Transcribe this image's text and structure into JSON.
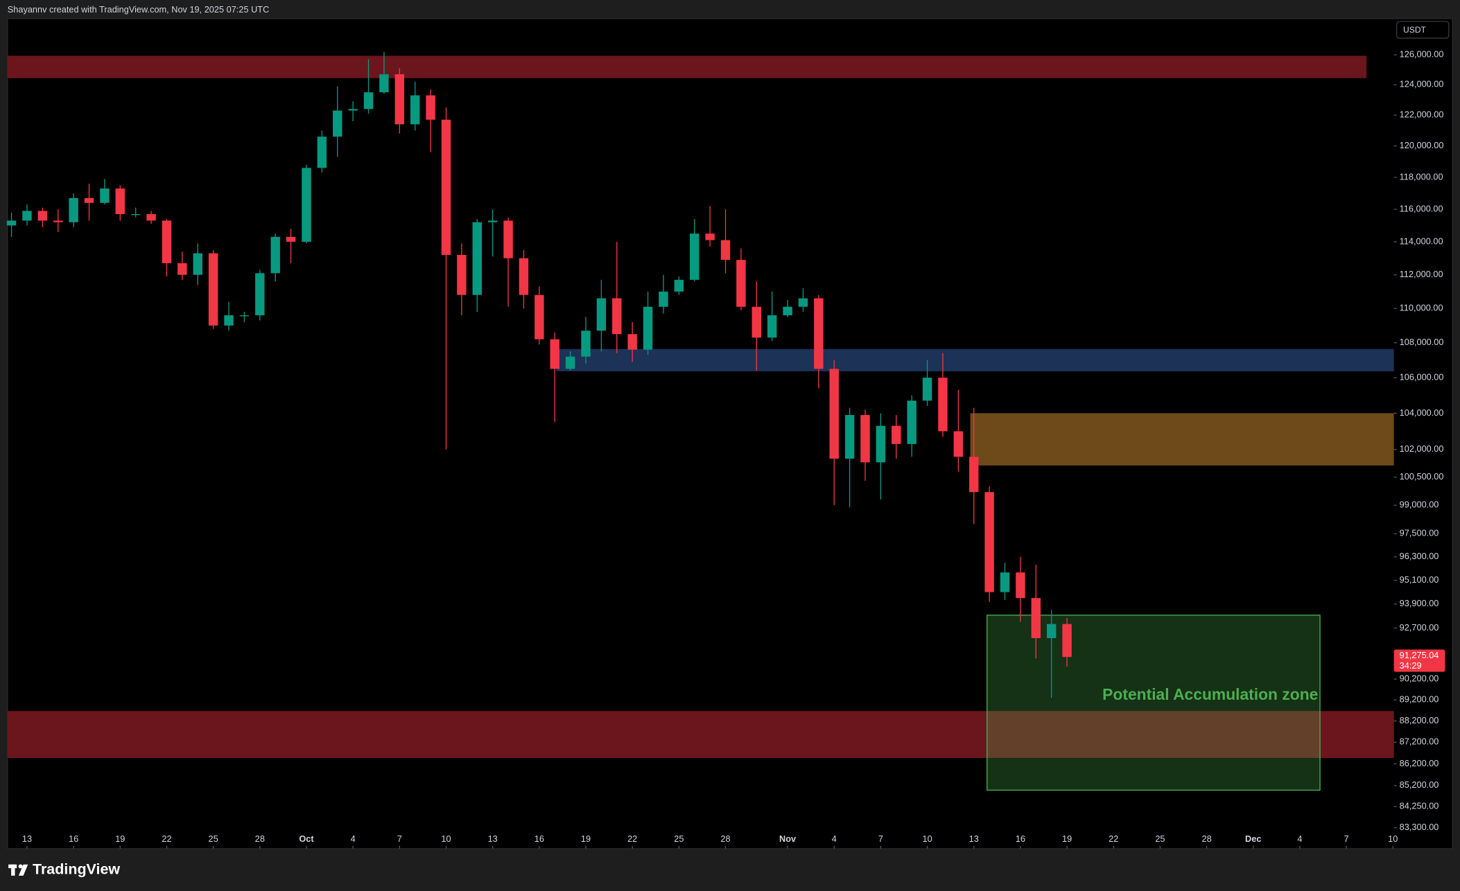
{
  "header": {
    "credit": "Shayannv created with TradingView.com, Nov 19, 2025 07:25 UTC"
  },
  "footer": {
    "brand": "TradingView"
  },
  "chart_data": {
    "type": "candlestick",
    "currency": "USDT",
    "log_scale": true,
    "up_color": "#089981",
    "down_color": "#f23645",
    "xlim": [
      11.74,
      101.06
    ],
    "xticks": [
      {
        "value": 13,
        "label": "13"
      },
      {
        "value": 16,
        "label": "16"
      },
      {
        "value": 19,
        "label": "19"
      },
      {
        "value": 22,
        "label": "22"
      },
      {
        "value": 25,
        "label": "25"
      },
      {
        "value": 28,
        "label": "28"
      },
      {
        "value": 31,
        "label": "Oct"
      },
      {
        "value": 34,
        "label": "4"
      },
      {
        "value": 37,
        "label": "7"
      },
      {
        "value": 40,
        "label": "10"
      },
      {
        "value": 43,
        "label": "13"
      },
      {
        "value": 46,
        "label": "16"
      },
      {
        "value": 49,
        "label": "19"
      },
      {
        "value": 52,
        "label": "22"
      },
      {
        "value": 55,
        "label": "25"
      },
      {
        "value": 58,
        "label": "28"
      },
      {
        "value": 62,
        "label": "Nov"
      },
      {
        "value": 65,
        "label": "4"
      },
      {
        "value": 68,
        "label": "7"
      },
      {
        "value": 71,
        "label": "10"
      },
      {
        "value": 74,
        "label": "13"
      },
      {
        "value": 77,
        "label": "16"
      },
      {
        "value": 80,
        "label": "19"
      },
      {
        "value": 83,
        "label": "22"
      },
      {
        "value": 86,
        "label": "25"
      },
      {
        "value": 89,
        "label": "28"
      },
      {
        "value": 92,
        "label": "Dec"
      },
      {
        "value": 95,
        "label": "4"
      },
      {
        "value": 98,
        "label": "7"
      },
      {
        "value": 101,
        "label": "10"
      }
    ],
    "ylim": [
      82370,
      128470
    ],
    "yticks": [
      {
        "value": 126000,
        "label": "126,000.00"
      },
      {
        "value": 124000,
        "label": "124,000.00"
      },
      {
        "value": 122000,
        "label": "122,000.00"
      },
      {
        "value": 120000,
        "label": "120,000.00"
      },
      {
        "value": 118000,
        "label": "118,000.00"
      },
      {
        "value": 116000,
        "label": "116,000.00"
      },
      {
        "value": 114000,
        "label": "114,000.00"
      },
      {
        "value": 112000,
        "label": "112,000.00"
      },
      {
        "value": 110000,
        "label": "110,000.00"
      },
      {
        "value": 108000,
        "label": "108,000.00"
      },
      {
        "value": 106000,
        "label": "106,000.00"
      },
      {
        "value": 104000,
        "label": "104,000.00"
      },
      {
        "value": 102000,
        "label": "102,000.00"
      },
      {
        "value": 100500,
        "label": "100,500.00"
      },
      {
        "value": 99000,
        "label": "99,000.00"
      },
      {
        "value": 97500,
        "label": "97,500.00"
      },
      {
        "value": 96300,
        "label": "96,300.00"
      },
      {
        "value": 95100,
        "label": "95,100.00"
      },
      {
        "value": 93900,
        "label": "93,900.00"
      },
      {
        "value": 92700,
        "label": "92,700.00"
      },
      {
        "value": 90200,
        "label": "90,200.00"
      },
      {
        "value": 89200,
        "label": "89,200.00"
      },
      {
        "value": 88200,
        "label": "88,200.00"
      },
      {
        "value": 87200,
        "label": "87,200.00"
      },
      {
        "value": 86200,
        "label": "86,200.00"
      },
      {
        "value": 85200,
        "label": "85,200.00"
      },
      {
        "value": 84250,
        "label": "84,250.00"
      },
      {
        "value": 83300,
        "label": "83,300.00"
      }
    ],
    "current_price": {
      "value": 91275.04,
      "label": "91,275.04"
    },
    "countdown": "34:29",
    "zones": [
      {
        "x": [
          11.74,
          99.3
        ],
        "y": [
          124440,
          125940
        ],
        "color": "#6b161c"
      },
      {
        "x": [
          47.1,
          101.06
        ],
        "y": [
          106360,
          107640
        ],
        "color": "#1c3256"
      },
      {
        "x": [
          73.77,
          101.06
        ],
        "y": [
          101130,
          104000
        ],
        "color": "#6e4a1a"
      },
      {
        "x": [
          11.74,
          101.06
        ],
        "y": [
          86470,
          88670
        ],
        "color": "#6b161c"
      },
      {
        "x": [
          74.85,
          96.3
        ],
        "y": [
          84990,
          93340
        ],
        "color": "#4caf50",
        "label": "Potential Accumulation zone"
      }
    ],
    "x": [
      12,
      13,
      14,
      15,
      16,
      17,
      18,
      19,
      20,
      21,
      22,
      23,
      24,
      25,
      26,
      27,
      28,
      29,
      30,
      31,
      32,
      33,
      34,
      35,
      36,
      37,
      38,
      39,
      40,
      41,
      42,
      43,
      44,
      45,
      46,
      47,
      48,
      49,
      50,
      51,
      52,
      53,
      54,
      55,
      56,
      57,
      58,
      59,
      60,
      61,
      62,
      63,
      64,
      65,
      66,
      67,
      68,
      69,
      70,
      71,
      72,
      73,
      74,
      75,
      76,
      77,
      78,
      79,
      80
    ],
    "open": [
      115000,
      115300,
      115900,
      115300,
      115200,
      116700,
      116400,
      117300,
      115700,
      115700,
      115300,
      112700,
      112000,
      113300,
      109000,
      109600,
      109600,
      112100,
      114300,
      114000,
      118600,
      120600,
      122300,
      122400,
      123500,
      124700,
      121400,
      123300,
      121700,
      113200,
      110800,
      115200,
      115300,
      113000,
      110800,
      108200,
      106500,
      107200,
      108700,
      110600,
      108500,
      107600,
      110100,
      111000,
      111700,
      114500,
      114100,
      112900,
      110100,
      108300,
      109600,
      110100,
      110600,
      106500,
      101500,
      103900,
      101300,
      103300,
      102300,
      104700,
      106000,
      103000,
      101600,
      99700,
      94500,
      95500,
      94200,
      92200,
      92900
    ],
    "high": [
      115800,
      116300,
      116100,
      116000,
      117000,
      117600,
      117900,
      117500,
      116100,
      115900,
      115400,
      113400,
      113900,
      113500,
      110400,
      109800,
      112300,
      114500,
      114800,
      118800,
      121000,
      123900,
      122900,
      125700,
      126200,
      125100,
      124200,
      123700,
      122500,
      113900,
      115400,
      116000,
      115500,
      113500,
      111300,
      108600,
      107500,
      109500,
      111700,
      114000,
      109200,
      111000,
      112000,
      111900,
      115400,
      116200,
      116000,
      113600,
      111600,
      111000,
      110500,
      111200,
      110800,
      107000,
      104300,
      104200,
      104000,
      103900,
      105000,
      107000,
      107400,
      105300,
      104300,
      100000,
      96000,
      96300,
      95900,
      93600,
      93200
    ],
    "low": [
      114300,
      115000,
      114900,
      114600,
      114900,
      115300,
      116300,
      115300,
      115500,
      115100,
      111900,
      111700,
      111400,
      108800,
      108700,
      109200,
      109300,
      111600,
      112700,
      113900,
      118300,
      119300,
      121600,
      122100,
      123400,
      120800,
      121000,
      119600,
      102000,
      109600,
      109800,
      113100,
      110100,
      110000,
      107900,
      103500,
      106400,
      106800,
      107500,
      107400,
      106900,
      107300,
      109700,
      110800,
      111600,
      113700,
      112100,
      109900,
      106400,
      108100,
      109500,
      109800,
      105400,
      99000,
      98900,
      100300,
      99300,
      101500,
      101600,
      104400,
      102700,
      100800,
      98000,
      94000,
      94100,
      93000,
      91200,
      89300,
      90800
    ],
    "close": [
      115300,
      115900,
      115300,
      115200,
      116700,
      116400,
      117300,
      115700,
      115700,
      115300,
      112700,
      112000,
      113300,
      109000,
      109600,
      109600,
      112100,
      114300,
      114000,
      118600,
      120600,
      122300,
      122400,
      123500,
      124700,
      121400,
      123300,
      121700,
      113200,
      110800,
      115200,
      115300,
      113000,
      110800,
      108200,
      106500,
      107200,
      108700,
      110600,
      108500,
      107600,
      110100,
      111000,
      111700,
      114500,
      114100,
      112900,
      110100,
      108300,
      109600,
      110100,
      110600,
      106500,
      101500,
      103900,
      101300,
      103300,
      102300,
      104700,
      106000,
      103000,
      101600,
      99700,
      94500,
      95500,
      94200,
      92200,
      92900,
      91275.04
    ]
  }
}
